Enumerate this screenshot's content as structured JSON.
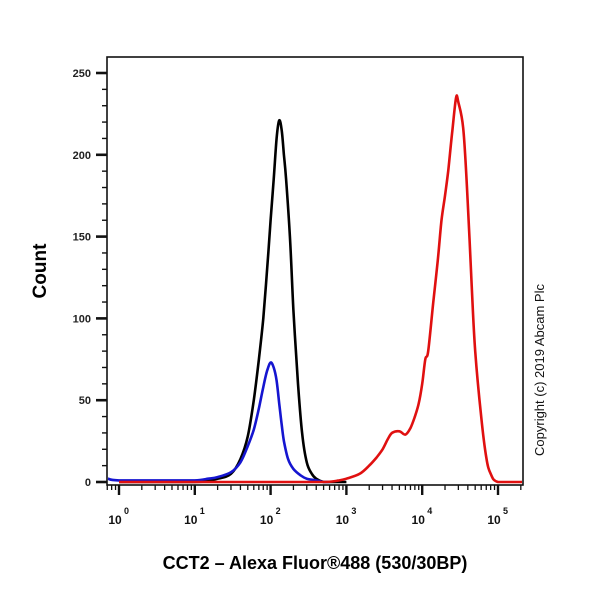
{
  "chart_data": {
    "type": "line",
    "title": "",
    "xlabel": "CCT2 – Alexa Fluor®488 (530/30BP)",
    "ylabel": "Count",
    "xscale": "log",
    "xlim": [
      0.6,
      250000
    ],
    "ylim": [
      0,
      250
    ],
    "x_tick_labels": [
      {
        "base": "10",
        "exp": "0",
        "value": 1
      },
      {
        "base": "10",
        "exp": "1",
        "value": 10
      },
      {
        "base": "10",
        "exp": "2",
        "value": 100
      },
      {
        "base": "10",
        "exp": "3",
        "value": 1000
      },
      {
        "base": "10",
        "exp": "4",
        "value": 10000
      },
      {
        "base": "10",
        "exp": "5",
        "value": 100000
      }
    ],
    "y_ticks": [
      0,
      50,
      100,
      150,
      200,
      250
    ],
    "grid": false,
    "legend": null,
    "annotation": "Copyright (c) 2019 Abcam Plc",
    "series": [
      {
        "name": "Black",
        "color": "#000000",
        "x": [
          1,
          10,
          20,
          30,
          40,
          50,
          60,
          70,
          80,
          90,
          100,
          110,
          120,
          130,
          140,
          150,
          160,
          180,
          200,
          230,
          260,
          300,
          350,
          400,
          500,
          600,
          1000
        ],
        "y": [
          0,
          0,
          2,
          5,
          14,
          28,
          50,
          75,
          100,
          130,
          160,
          185,
          210,
          221,
          215,
          200,
          185,
          150,
          105,
          60,
          30,
          12,
          5,
          2,
          0,
          0,
          0
        ]
      },
      {
        "name": "Blue",
        "color": "#1515d0",
        "x": [
          0.6,
          1,
          5,
          10,
          15,
          20,
          30,
          40,
          50,
          60,
          70,
          80,
          90,
          100,
          110,
          120,
          130,
          140,
          150,
          170,
          200,
          250,
          300,
          400,
          500,
          600
        ],
        "y": [
          2,
          1,
          1,
          1,
          2,
          3,
          6,
          12,
          22,
          32,
          45,
          58,
          68,
          73,
          70,
          62,
          48,
          35,
          25,
          14,
          8,
          4,
          2,
          1,
          0,
          0
        ]
      },
      {
        "name": "Red",
        "color": "#e01010",
        "x": [
          1,
          100,
          500,
          800,
          1000,
          1500,
          2000,
          2500,
          3000,
          3500,
          4000,
          5000,
          6000,
          7000,
          8000,
          9000,
          10000,
          11000,
          12000,
          14000,
          16000,
          18000,
          20000,
          22000,
          25000,
          28000,
          30000,
          35000,
          40000,
          45000,
          50000,
          60000,
          70000,
          80000,
          100000,
          250000
        ],
        "y": [
          0,
          0,
          0,
          1,
          2,
          5,
          10,
          15,
          20,
          26,
          30,
          31,
          29,
          33,
          40,
          48,
          60,
          75,
          80,
          110,
          135,
          160,
          175,
          190,
          215,
          235,
          232,
          215,
          170,
          120,
          80,
          40,
          15,
          5,
          0,
          0
        ]
      }
    ]
  }
}
